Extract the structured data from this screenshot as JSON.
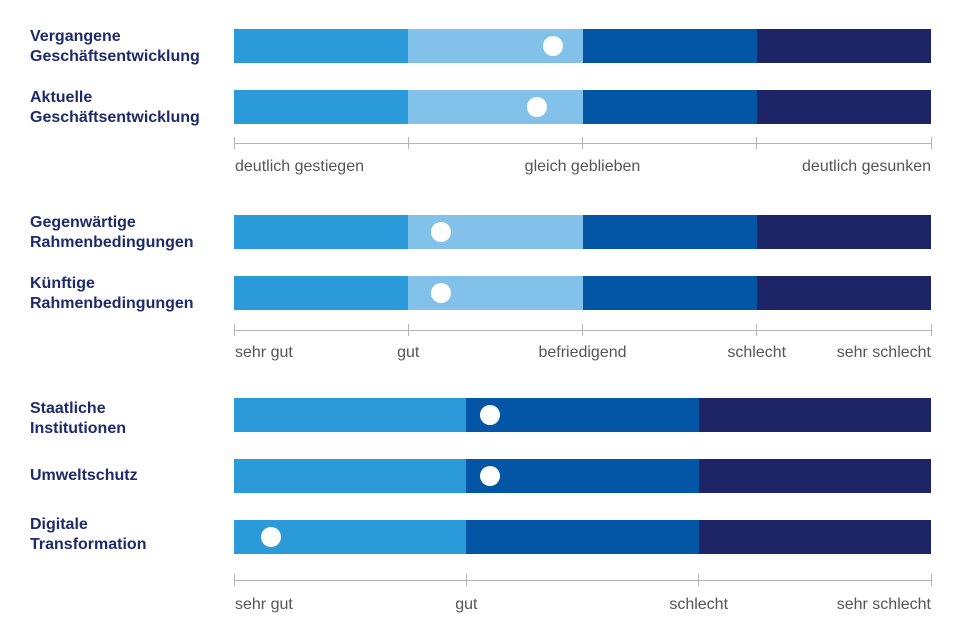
{
  "colors": {
    "c1": "#2a9ad8",
    "c2": "#82c2ea",
    "c3": "#0356a6",
    "c4": "#1e2566",
    "label": "#1e2a6b"
  },
  "chart_data": [
    {
      "type": "bar",
      "scale": [
        "deutlich gestiegen",
        "",
        "gleich geblieben",
        "",
        "deutlich gesunken"
      ],
      "tick_labels": [
        "deutlich gestiegen",
        "gleich geblieben",
        "deutlich gesunken"
      ],
      "xlim": [
        1,
        5
      ],
      "segments": [
        [
          1,
          2
        ],
        [
          2,
          3
        ],
        [
          3,
          4
        ],
        [
          4,
          5
        ]
      ],
      "segment_colors": [
        "#2a9ad8",
        "#82c2ea",
        "#0356a6",
        "#1e2566"
      ],
      "rows": [
        {
          "label": "Vergangene\nGeschäftsentwicklung",
          "value": 2.83
        },
        {
          "label": "Aktuelle\nGeschäftsentwicklung",
          "value": 2.74
        }
      ]
    },
    {
      "type": "bar",
      "scale": [
        "sehr gut",
        "gut",
        "befriedigend",
        "schlecht",
        "sehr schlecht"
      ],
      "tick_labels": [
        "sehr gut",
        "gut",
        "befriedigend",
        "schlecht",
        "sehr schlecht"
      ],
      "xlim": [
        1,
        5
      ],
      "segments": [
        [
          1,
          2
        ],
        [
          2,
          3
        ],
        [
          3,
          4
        ],
        [
          4,
          5
        ]
      ],
      "segment_colors": [
        "#2a9ad8",
        "#82c2ea",
        "#0356a6",
        "#1e2566"
      ],
      "rows": [
        {
          "label": "Gegenwärtige\nRahmenbedingungen",
          "value": 2.19
        },
        {
          "label": "Künftige\nRahmenbedingungen",
          "value": 2.19
        }
      ]
    },
    {
      "type": "bar",
      "scale": [
        "sehr gut",
        "gut",
        "schlecht",
        "sehr schlecht"
      ],
      "tick_labels": [
        "sehr gut",
        "gut",
        "schlecht",
        "sehr schlecht"
      ],
      "xlim": [
        1,
        4
      ],
      "segments": [
        [
          1,
          2
        ],
        [
          2,
          3
        ],
        [
          3,
          4
        ]
      ],
      "segment_colors": [
        "#2a9ad8",
        "#0356a6",
        "#1e2566"
      ],
      "rows": [
        {
          "label": "Staatliche\nInstitutionen",
          "value": 2.1
        },
        {
          "label": "Umweltschutz",
          "value": 2.1
        },
        {
          "label": "Digitale\nTransformation",
          "value": 1.16
        }
      ]
    }
  ]
}
